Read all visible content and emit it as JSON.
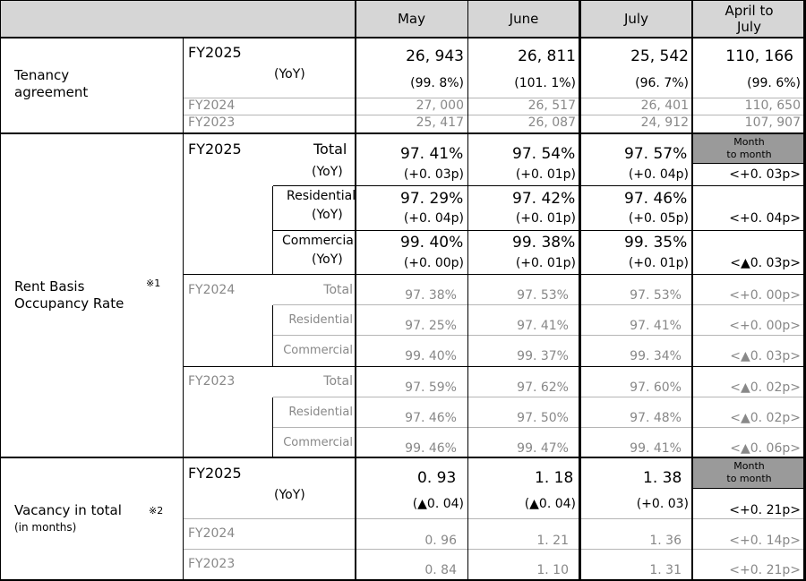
{
  "header": {
    "may": "May",
    "june": "June",
    "july": "July",
    "april_to_july": "April to\nJuly"
  },
  "tenancy": {
    "label": "Tenancy\nagreement",
    "fy2025": {
      "label": "FY2025",
      "yoy_label": "(YoY)",
      "values": [
        "26, 943",
        "26, 811",
        "25, 542",
        "110, 166"
      ],
      "yoy": [
        "(99. 8%)",
        "(101. 1%)",
        "(96. 7%)",
        "(99. 6%)"
      ]
    },
    "fy2024": {
      "label": "FY2024",
      "values": [
        "27, 000",
        "26, 517",
        "26, 401",
        "110, 650"
      ]
    },
    "fy2023": {
      "label": "FY2023",
      "values": [
        "25, 417",
        "26, 087",
        "24, 912",
        "107, 907"
      ]
    }
  },
  "occupancy": {
    "label": "Rent Basis\nOccupancy Rate",
    "note": "※1",
    "month_to_month": "Month\nto month",
    "fy2025": {
      "label": "FY2025",
      "total": {
        "label": "Total",
        "yoy_label": "(YoY)",
        "values": [
          "97. 41%",
          "97. 54%",
          "97. 57%"
        ],
        "yoy": [
          "(+0. 03p)",
          "(+0. 01p)",
          "(+0. 04p)"
        ],
        "mtm": "<+0. 03p>"
      },
      "residential": {
        "label": "Residential",
        "yoy_label": "(YoY)",
        "values": [
          "97. 29%",
          "97. 42%",
          "97. 46%"
        ],
        "yoy": [
          "(+0. 04p)",
          "(+0. 01p)",
          "(+0. 05p)"
        ],
        "mtm": "<+0. 04p>"
      },
      "commercial": {
        "label": "Commercial",
        "yoy_label": "(YoY)",
        "values": [
          "99. 40%",
          "99. 38%",
          "99. 35%"
        ],
        "yoy": [
          "(+0. 00p)",
          "(+0. 01p)",
          "(+0. 01p)"
        ],
        "mtm": "<▲0. 03p>"
      }
    },
    "fy2024": {
      "label": "FY2024",
      "rows": [
        {
          "label": "Total",
          "values": [
            "97. 38%",
            "97. 53%",
            "97. 53%"
          ],
          "mtm": "<+0. 00p>"
        },
        {
          "label": "Residential",
          "values": [
            "97. 25%",
            "97. 41%",
            "97. 41%"
          ],
          "mtm": "<+0. 00p>"
        },
        {
          "label": "Commercial",
          "values": [
            "99. 40%",
            "99. 37%",
            "99. 34%"
          ],
          "mtm": "<▲0. 03p>"
        }
      ]
    },
    "fy2023": {
      "label": "FY2023",
      "rows": [
        {
          "label": "Total",
          "values": [
            "97. 59%",
            "97. 62%",
            "97. 60%"
          ],
          "mtm": "<▲0. 02p>"
        },
        {
          "label": "Residential",
          "values": [
            "97. 46%",
            "97. 50%",
            "97. 48%"
          ],
          "mtm": "<▲0. 02p>"
        },
        {
          "label": "Commercial",
          "values": [
            "99. 46%",
            "99. 47%",
            "99. 41%"
          ],
          "mtm": "<▲0. 06p>"
        }
      ]
    }
  },
  "vacancy": {
    "label": "Vacancy in total",
    "sublabel": "(in months)",
    "note": "※2",
    "month_to_month": "Month\nto month",
    "fy2025": {
      "label": "FY2025",
      "yoy_label": "(YoY)",
      "values": [
        "0. 93",
        "1. 18",
        "1. 38"
      ],
      "yoy": [
        "(▲0. 04)",
        "(▲0. 04)",
        "(+0. 03)"
      ],
      "mtm": "<+0. 21p>"
    },
    "fy2024": {
      "label": "FY2024",
      "values": [
        "0. 96",
        "1. 21",
        "1. 36"
      ],
      "mtm": "<+0. 14p>"
    },
    "fy2023": {
      "label": "FY2023",
      "values": [
        "0. 84",
        "1. 10",
        "1. 31"
      ],
      "mtm": "<+0. 21p>"
    }
  }
}
